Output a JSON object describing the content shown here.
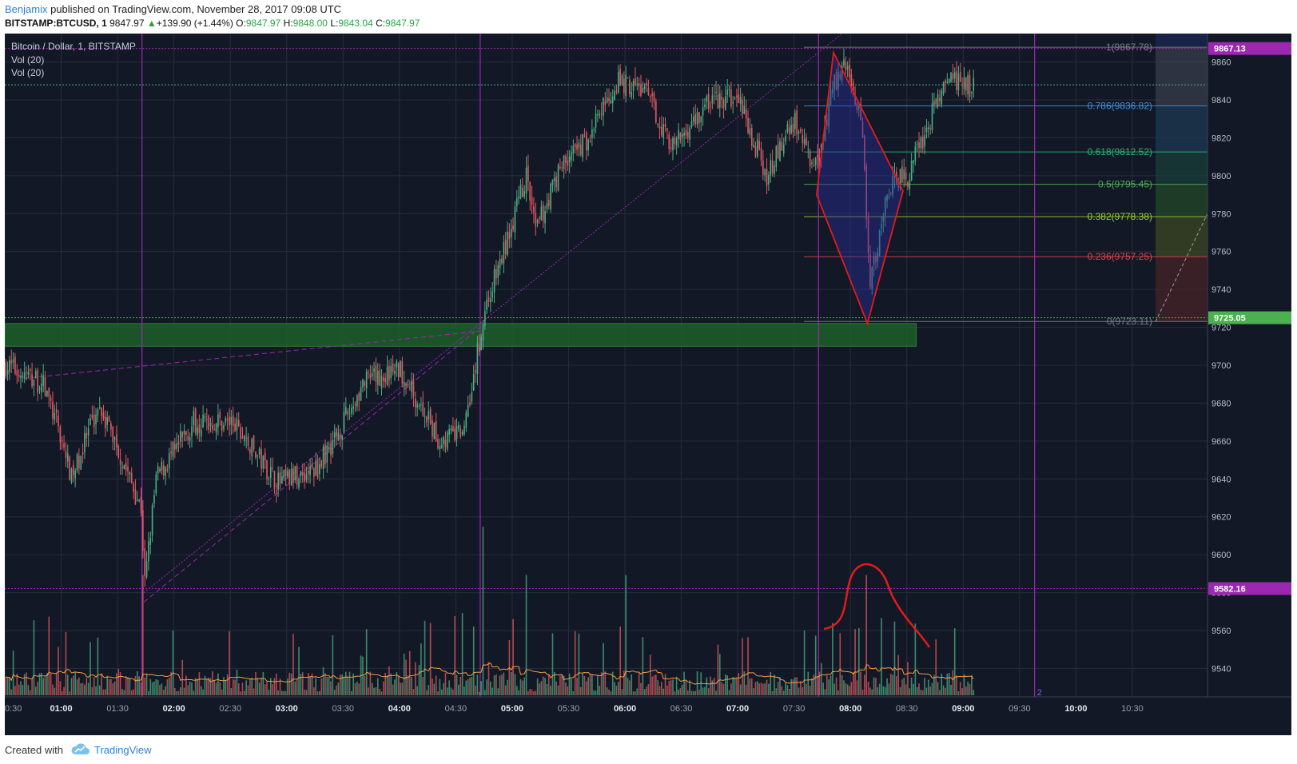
{
  "header": {
    "author": "Benjamix",
    "published_text": "published on TradingView.com, November 28, 2017 09:08 UTC",
    "symbol": "BITSTAMP:BTCUSD, 1",
    "last": "9847.97",
    "change": "+139.90 (+1.44%)",
    "o_label": "O:",
    "o_value": "9847.97",
    "h_label": "H:",
    "h_value": "9848.00",
    "l_label": "L:",
    "l_value": "9843.04",
    "c_label": "C:",
    "c_value": "9847.97"
  },
  "footer": {
    "created_with": "Created with",
    "brand": "TradingView"
  },
  "colors": {
    "background": "#121826",
    "up": "#4bae81",
    "down": "#e0585f",
    "fib_line": "#9c27b0",
    "zone": "#1f5f2c",
    "pattern": "#e31b1b"
  },
  "chart_data": {
    "type": "candlestick",
    "title": "Bitcoin / Dollar, 1, BITSTAMP",
    "indicators": [
      "Vol (20)",
      "Vol (20)"
    ],
    "x_ticks": [
      "0:30",
      "01:00",
      "01:30",
      "02:00",
      "02:30",
      "03:00",
      "03:30",
      "04:00",
      "04:30",
      "05:00",
      "05:30",
      "06:00",
      "06:30",
      "07:00",
      "07:30",
      "08:00",
      "08:30",
      "09:00",
      "09:30",
      "10:00",
      "10:30"
    ],
    "bold_ticks": [
      "01:00",
      "02:00",
      "03:00",
      "04:00",
      "05:00",
      "06:00",
      "07:00",
      "08:00",
      "09:00",
      "10:00"
    ],
    "y_ticks": [
      9860,
      9840,
      9820,
      9800,
      9780,
      9760,
      9740,
      9720,
      9700,
      9680,
      9660,
      9640,
      9620,
      9600,
      9580,
      9560,
      9540
    ],
    "ylim": [
      9525,
      9875
    ],
    "price_tags": [
      {
        "value": "9867.13",
        "price": 9867.13,
        "color": "#9c27b0"
      },
      {
        "value": "9725.05",
        "price": 9725.05,
        "color": "#4caf50"
      },
      {
        "value": "9582.16",
        "price": 9582.16,
        "color": "#9c27b0"
      }
    ],
    "fib_levels": [
      {
        "label": "1(9867.78)",
        "ratio": "1",
        "price": 9867.78,
        "color": "#7a7f8a"
      },
      {
        "label": "0.786(9836.82)",
        "ratio": "0.786",
        "price": 9836.82,
        "color": "#3b8fd9"
      },
      {
        "label": "0.618(9812.52)",
        "ratio": "0.618",
        "price": 9812.52,
        "color": "#2bb673"
      },
      {
        "label": "0.5(9795.45)",
        "ratio": "0.5",
        "price": 9795.45,
        "color": "#4caf50"
      },
      {
        "label": "0.382(9778.38)",
        "ratio": "0.382",
        "price": 9778.38,
        "color": "#9acd32"
      },
      {
        "label": "0.236(9757.25)",
        "ratio": "0.236",
        "price": 9757.25,
        "color": "#e0434a"
      },
      {
        "label": "0(9723.11)",
        "ratio": "0",
        "price": 9723.11,
        "color": "#7a7f8a"
      }
    ],
    "support_zone": {
      "low": 9710,
      "high": 9722,
      "start": "00:30",
      "end": "08:35"
    },
    "vertical_markers": [
      "01:43",
      "04:43",
      "07:43",
      "09:38"
    ],
    "series_anchors": [
      {
        "t": "00:30",
        "price": 9700
      },
      {
        "t": "00:50",
        "price": 9690
      },
      {
        "t": "01:00",
        "price": 9660
      },
      {
        "t": "01:05",
        "price": 9640
      },
      {
        "t": "01:20",
        "price": 9680
      },
      {
        "t": "01:42",
        "price": 9625
      },
      {
        "t": "01:44",
        "price": 9585
      },
      {
        "t": "01:50",
        "price": 9640
      },
      {
        "t": "02:10",
        "price": 9670
      },
      {
        "t": "02:30",
        "price": 9670
      },
      {
        "t": "02:55",
        "price": 9638
      },
      {
        "t": "03:15",
        "price": 9645
      },
      {
        "t": "03:30",
        "price": 9670
      },
      {
        "t": "03:40",
        "price": 9690
      },
      {
        "t": "04:00",
        "price": 9698
      },
      {
        "t": "04:10",
        "price": 9680
      },
      {
        "t": "04:20",
        "price": 9660
      },
      {
        "t": "04:33",
        "price": 9665
      },
      {
        "t": "04:40",
        "price": 9700
      },
      {
        "t": "04:45",
        "price": 9730
      },
      {
        "t": "04:55",
        "price": 9760
      },
      {
        "t": "05:07",
        "price": 9800
      },
      {
        "t": "05:12",
        "price": 9770
      },
      {
        "t": "05:25",
        "price": 9805
      },
      {
        "t": "05:40",
        "price": 9820
      },
      {
        "t": "05:55",
        "price": 9850
      },
      {
        "t": "06:10",
        "price": 9845
      },
      {
        "t": "06:25",
        "price": 9815
      },
      {
        "t": "06:45",
        "price": 9840
      },
      {
        "t": "07:00",
        "price": 9840
      },
      {
        "t": "07:15",
        "price": 9800
      },
      {
        "t": "07:30",
        "price": 9830
      },
      {
        "t": "07:40",
        "price": 9800
      },
      {
        "t": "07:50",
        "price": 9845
      },
      {
        "t": "07:55",
        "price": 9860
      },
      {
        "t": "08:05",
        "price": 9835
      },
      {
        "t": "08:10",
        "price": 9745
      },
      {
        "t": "08:20",
        "price": 9795
      },
      {
        "t": "08:30",
        "price": 9800
      },
      {
        "t": "08:40",
        "price": 9825
      },
      {
        "t": "08:50",
        "price": 9850
      },
      {
        "t": "09:05",
        "price": 9847
      }
    ],
    "diamond_pattern": [
      {
        "t": "07:42",
        "price": 9790
      },
      {
        "t": "07:51",
        "price": 9865
      },
      {
        "t": "08:28",
        "price": 9792
      },
      {
        "t": "08:09",
        "price": 9722
      }
    ],
    "volume_spikes": [
      {
        "t": "01:43",
        "level": "high"
      },
      {
        "t": "04:44",
        "level": "highest"
      },
      {
        "t": "05:07",
        "level": "high"
      },
      {
        "t": "06:00",
        "level": "high"
      },
      {
        "t": "08:08",
        "level": "high"
      }
    ],
    "grid": true,
    "scale_badge": "2"
  }
}
